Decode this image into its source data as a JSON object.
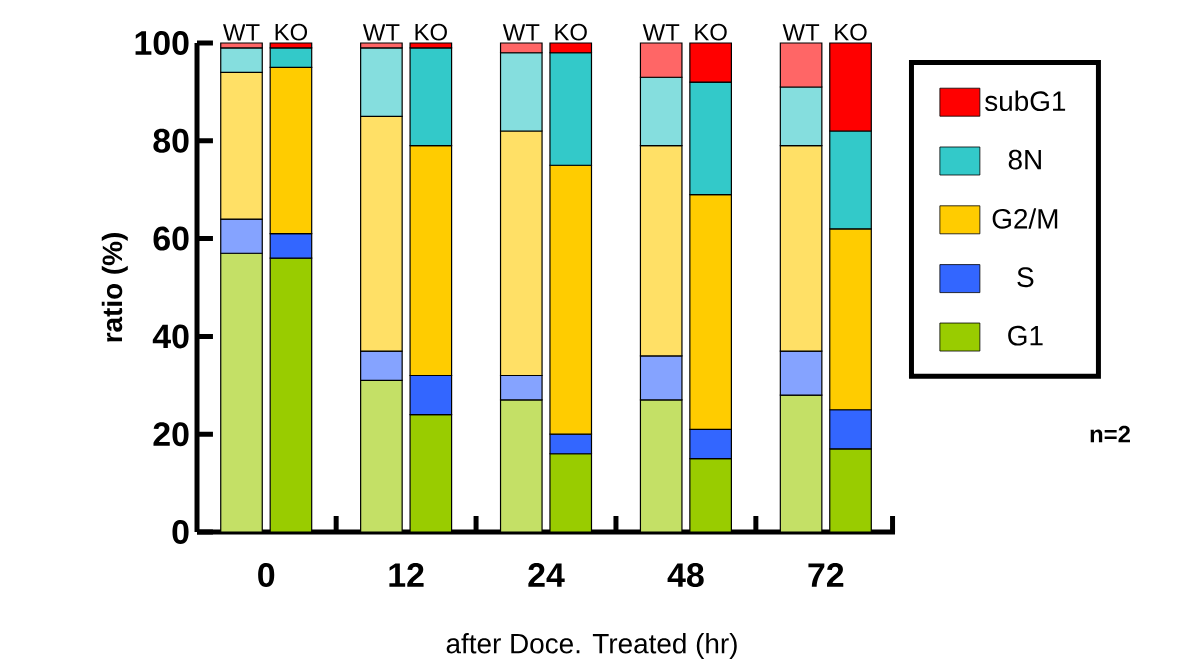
{
  "chart_data": {
    "type": "bar",
    "stacked": true,
    "xlabel": "after Doce. Treated (hr)",
    "ylabel": "ratio (%)",
    "categories": [
      "WT",
      "KO",
      "WT",
      "KO",
      "WT",
      "KO",
      "WT",
      "KO",
      "WT",
      "KO"
    ],
    "ylim": [
      0,
      100
    ],
    "yticks": [
      0,
      20,
      40,
      60,
      80,
      100
    ],
    "legend": "right",
    "grid": false,
    "annotations": [
      "0",
      "12",
      "24",
      "48",
      "72",
      "n=2"
    ],
    "series": [
      {
        "name": "G1",
        "color": "#99cc00",
        "colors": [
          "#c4e066",
          "#99cc00",
          "#c4e066",
          "#99cc00",
          "#c4e066",
          "#99cc00",
          "#c4e066",
          "#99cc00",
          "#c4e066",
          "#99cc00"
        ],
        "values": [
          57,
          56,
          31,
          24,
          27,
          16,
          27,
          15,
          28,
          17
        ]
      },
      {
        "name": "S",
        "color": "#3366ff",
        "colors": [
          "#85a3ff",
          "#3366ff",
          "#85a3ff",
          "#3366ff",
          "#85a3ff",
          "#3366ff",
          "#85a3ff",
          "#3366ff",
          "#85a3ff",
          "#3366ff"
        ],
        "values": [
          7,
          5,
          6,
          8,
          5,
          4,
          9,
          6,
          9,
          8
        ]
      },
      {
        "name": "G2/M",
        "color": "#ffcc00",
        "colors": [
          "#ffe066",
          "#ffcc00",
          "#ffe066",
          "#ffcc00",
          "#ffe066",
          "#ffcc00",
          "#ffe066",
          "#ffcc00",
          "#ffe066",
          "#ffcc00"
        ],
        "values": [
          30,
          34,
          48,
          47,
          50,
          55,
          43,
          48,
          42,
          37
        ]
      },
      {
        "name": "8N",
        "color": "#33c9c9",
        "colors": [
          "#85dede",
          "#33c9c9",
          "#85dede",
          "#33c9c9",
          "#85dede",
          "#33c9c9",
          "#85dede",
          "#33c9c9",
          "#85dede",
          "#33c9c9"
        ],
        "values": [
          5,
          4,
          14,
          20,
          16,
          23,
          14,
          23,
          12,
          20
        ]
      },
      {
        "name": "subG1",
        "color": "#ff0000",
        "colors": [
          "#ff6666",
          "#ff0000",
          "#ff6666",
          "#ff0000",
          "#ff6666",
          "#ff0000",
          "#ff6666",
          "#ff0000",
          "#ff6666",
          "#ff0000"
        ],
        "values": [
          1,
          1,
          1,
          1,
          2,
          2,
          7,
          8,
          9,
          18
        ]
      }
    ]
  }
}
